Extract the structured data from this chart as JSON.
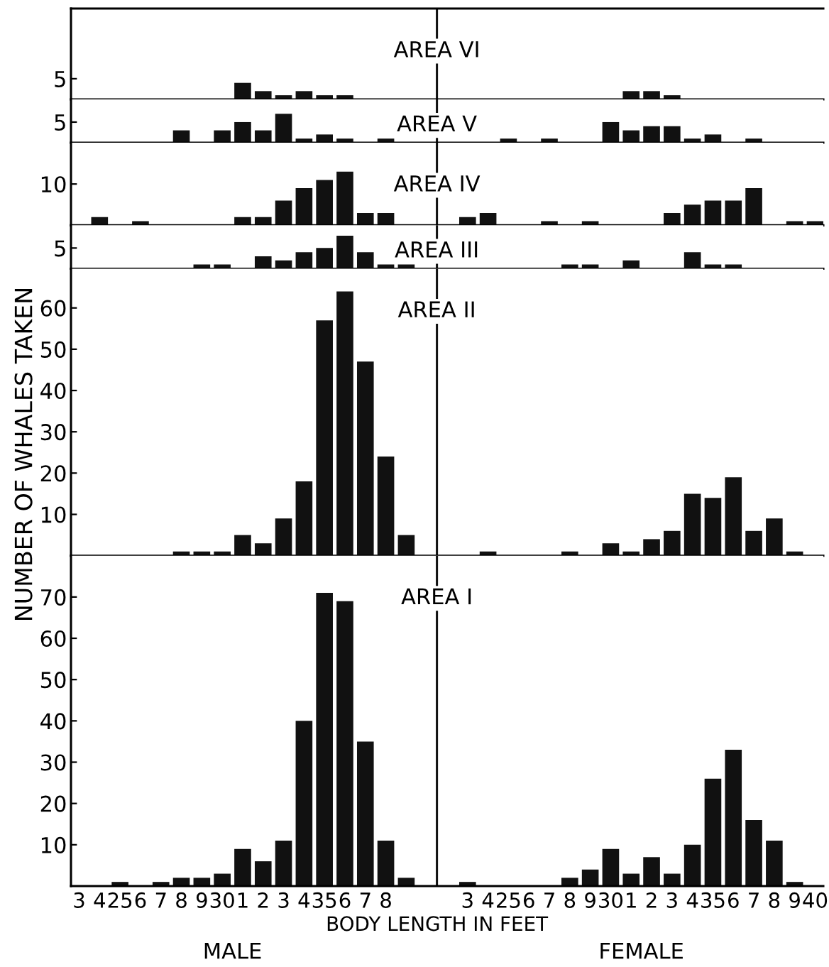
{
  "chart_data": [
    {
      "type": "bar",
      "title": "AREA VI",
      "categories": [
        "3",
        "4",
        "25",
        "6",
        "7",
        "8",
        "9",
        "30",
        "1",
        "2",
        "3",
        "4",
        "35",
        "6",
        "7",
        "8",
        null,
        null,
        null,
        "3",
        "4",
        "25",
        "6",
        "7",
        "8",
        "9",
        "30",
        "1",
        "2",
        "3",
        "4",
        "35",
        "6",
        "7",
        "8",
        "9",
        "40"
      ],
      "values": [
        null,
        null,
        null,
        null,
        null,
        null,
        null,
        null,
        4,
        2,
        1,
        2,
        1,
        1,
        null,
        null,
        null,
        null,
        null,
        null,
        null,
        null,
        null,
        null,
        null,
        null,
        null,
        2,
        2,
        1,
        null,
        null,
        null,
        null,
        null,
        null,
        null
      ],
      "color": "#111111",
      "ylim": [
        0,
        22
      ],
      "yticks": [
        5
      ],
      "tick_labels": "y"
    },
    {
      "type": "bar",
      "title": "AREA V",
      "categories": [
        "3",
        "4",
        "25",
        "6",
        "7",
        "8",
        "9",
        "30",
        "1",
        "2",
        "3",
        "4",
        "35",
        "6",
        "7",
        "8",
        null,
        null,
        null,
        "3",
        "4",
        "25",
        "6",
        "7",
        "8",
        "9",
        "30",
        "1",
        "2",
        "3",
        "4",
        "35",
        "6",
        "7",
        "8",
        "9",
        "40"
      ],
      "values": [
        null,
        null,
        null,
        null,
        null,
        3,
        null,
        3,
        5,
        3,
        7,
        1,
        2,
        1,
        null,
        1,
        null,
        null,
        null,
        null,
        null,
        1,
        null,
        1,
        null,
        null,
        5,
        3,
        4,
        4,
        1,
        2,
        null,
        1,
        null,
        null,
        null
      ],
      "color": "#111111",
      "ylim": [
        0,
        10.5
      ],
      "yticks": [
        5
      ],
      "tick_labels": "y"
    },
    {
      "type": "bar",
      "title": "AREA IV",
      "categories": [
        "3",
        "4",
        "25",
        "6",
        "7",
        "8",
        "9",
        "30",
        "1",
        "2",
        "3",
        "4",
        "35",
        "6",
        "7",
        "8",
        null,
        null,
        null,
        "3",
        "4",
        "25",
        "6",
        "7",
        "8",
        "9",
        "30",
        "1",
        "2",
        "3",
        "4",
        "35",
        "6",
        "7",
        "8",
        "9",
        "40"
      ],
      "values": [
        null,
        2,
        null,
        1,
        null,
        null,
        null,
        null,
        2,
        2,
        6,
        9,
        11,
        13,
        3,
        3,
        null,
        null,
        null,
        2,
        3,
        null,
        null,
        1,
        null,
        1,
        null,
        null,
        null,
        3,
        5,
        6,
        6,
        9,
        null,
        1,
        1
      ],
      "color": "#111111",
      "ylim": [
        0,
        20
      ],
      "yticks": [
        10
      ],
      "tick_labels": "y"
    },
    {
      "type": "bar",
      "title": "AREA III",
      "categories": [
        "3",
        "4",
        "25",
        "6",
        "7",
        "8",
        "9",
        "30",
        "1",
        "2",
        "3",
        "4",
        "35",
        "6",
        "7",
        "8",
        null,
        null,
        null,
        "3",
        "4",
        "25",
        "6",
        "7",
        "8",
        "9",
        "30",
        "1",
        "2",
        "3",
        "4",
        "35",
        "6",
        "7",
        "8",
        "9",
        "40"
      ],
      "values": [
        null,
        null,
        null,
        null,
        null,
        null,
        1,
        1,
        null,
        3,
        2,
        4,
        5,
        8,
        4,
        1,
        1,
        null,
        null,
        null,
        null,
        null,
        null,
        null,
        1,
        1,
        null,
        2,
        null,
        null,
        4,
        1,
        1,
        null,
        null,
        null,
        null
      ],
      "color": "#111111",
      "ylim": [
        0,
        10.5
      ],
      "yticks": [
        5
      ],
      "tick_labels": "y"
    },
    {
      "type": "bar",
      "title": "AREA II",
      "ylabel": "NUMBER OF WHALES TAKEN",
      "categories": [
        "3",
        "4",
        "25",
        "6",
        "7",
        "8",
        "9",
        "30",
        "1",
        "2",
        "3",
        "4",
        "35",
        "6",
        "7",
        "8",
        null,
        null,
        null,
        "3",
        "4",
        "25",
        "6",
        "7",
        "8",
        "9",
        "30",
        "1",
        "2",
        "3",
        "4",
        "35",
        "6",
        "7",
        "8",
        "9",
        "40"
      ],
      "values": [
        null,
        null,
        null,
        null,
        null,
        1,
        1,
        1,
        5,
        3,
        9,
        18,
        57,
        64,
        47,
        24,
        5,
        null,
        null,
        null,
        1,
        null,
        null,
        null,
        1,
        null,
        3,
        1,
        4,
        6,
        15,
        14,
        19,
        6,
        9,
        1,
        null
      ],
      "color": "#111111",
      "ylim": [
        0,
        69.5
      ],
      "yticks": [
        10,
        20,
        30,
        40,
        50,
        60
      ],
      "tick_labels": "y"
    },
    {
      "type": "bar",
      "title": "AREA I",
      "xlabel": "BODY LENGTH IN FEET",
      "annotations": [
        "MALE",
        "FEMALE"
      ],
      "categories": [
        "3",
        "4",
        "25",
        "6",
        "7",
        "8",
        "9",
        "30",
        "1",
        "2",
        "3",
        "4",
        "35",
        "6",
        "7",
        "8",
        null,
        null,
        null,
        "3",
        "4",
        "25",
        "6",
        "7",
        "8",
        "9",
        "30",
        "1",
        "2",
        "3",
        "4",
        "35",
        "6",
        "7",
        "8",
        "9",
        "40"
      ],
      "values": [
        null,
        null,
        1,
        null,
        1,
        2,
        2,
        3,
        9,
        6,
        11,
        40,
        71,
        69,
        35,
        11,
        2,
        null,
        null,
        1,
        null,
        null,
        null,
        null,
        2,
        4,
        9,
        3,
        7,
        3,
        10,
        26,
        33,
        16,
        11,
        1,
        null
      ],
      "color": "#111111",
      "ylim": [
        0,
        80
      ],
      "yticks": [
        10,
        20,
        30,
        40,
        50,
        60,
        70
      ]
    }
  ]
}
